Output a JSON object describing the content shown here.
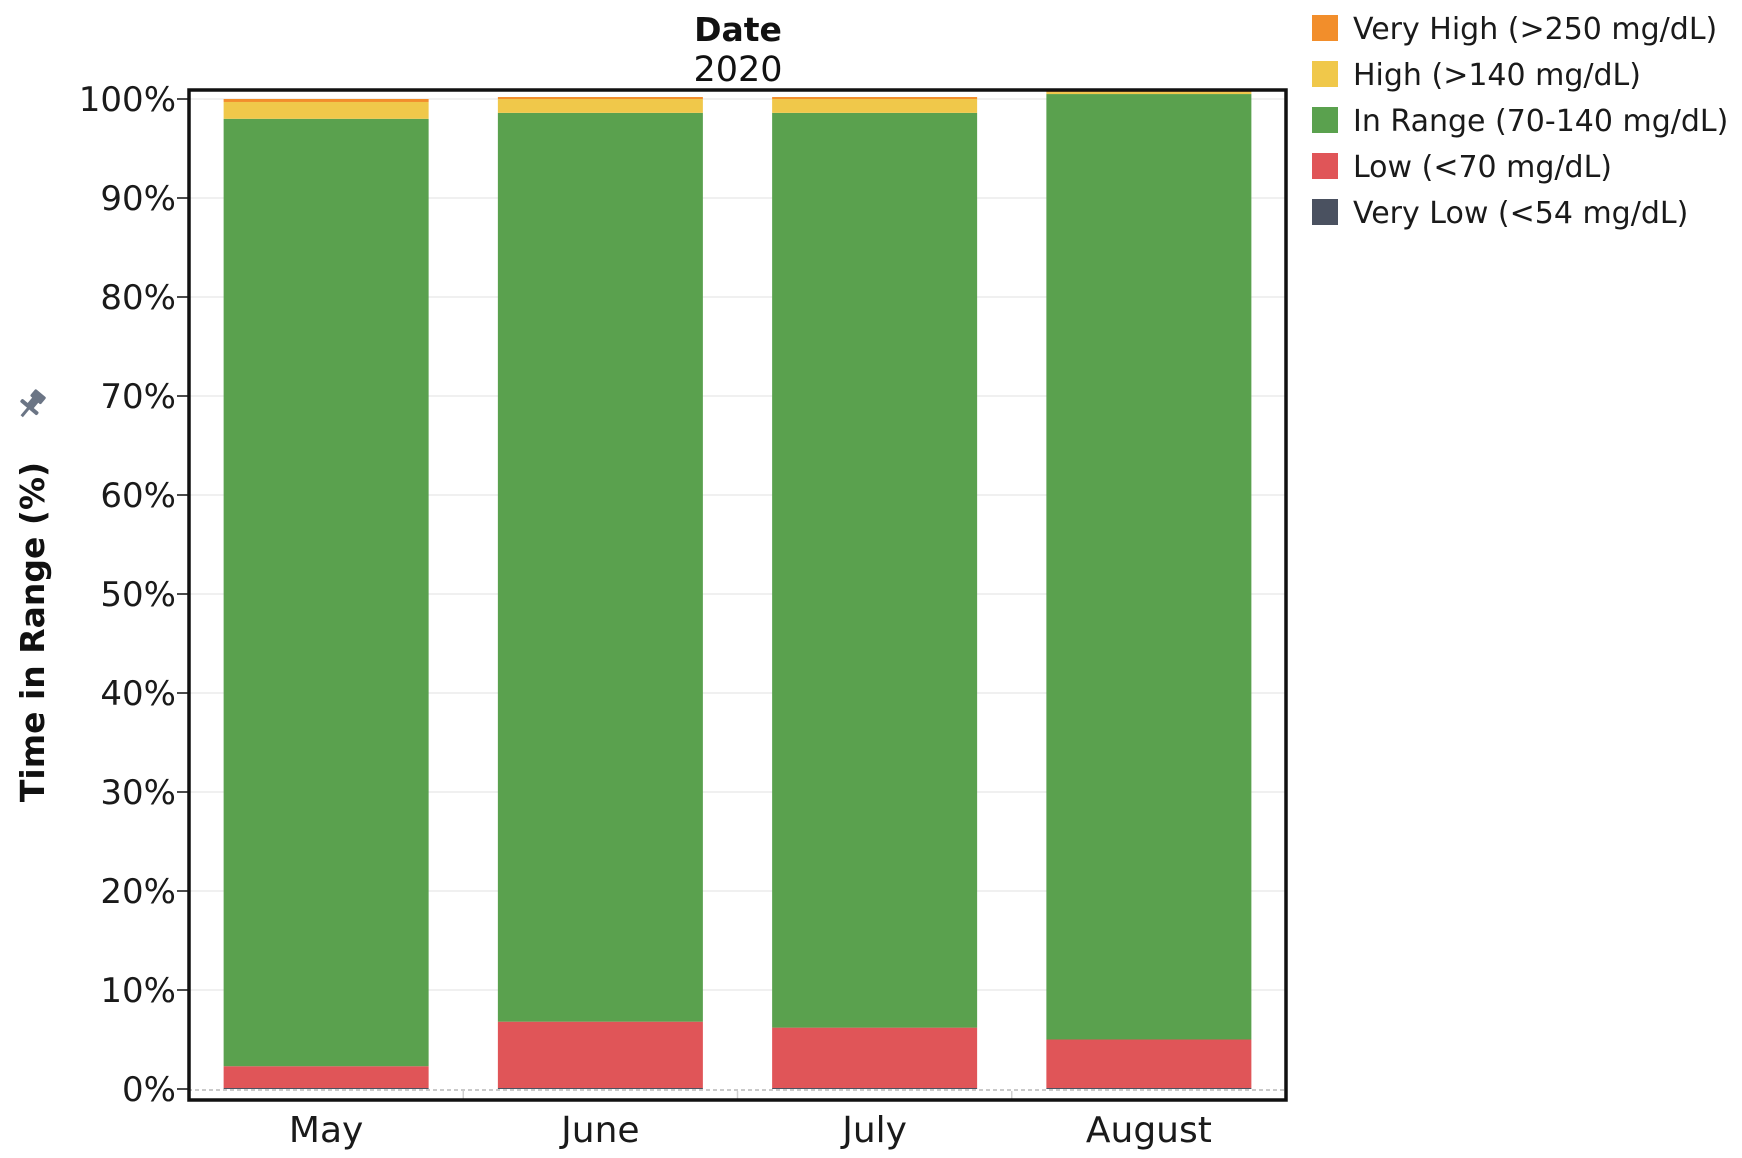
{
  "chart_data": {
    "type": "bar",
    "stacked": true,
    "title": "Date",
    "subtitle": "2020",
    "xlabel": "",
    "ylabel": "Time in Range (%)",
    "ylim": [
      0,
      100
    ],
    "yticks": [
      "0%",
      "10%",
      "20%",
      "30%",
      "40%",
      "50%",
      "60%",
      "70%",
      "80%",
      "90%",
      "100%"
    ],
    "ytick_values": [
      0,
      10,
      20,
      30,
      40,
      50,
      60,
      70,
      80,
      90,
      100
    ],
    "grid": true,
    "legend_position": "top-right",
    "categories": [
      "May",
      "June",
      "July",
      "August"
    ],
    "series": [
      {
        "name": "Very Low (<54 mg/dL)",
        "color": "#4a5160",
        "values": [
          0.1,
          0.1,
          0.1,
          0.1
        ]
      },
      {
        "name": "Low (<70 mg/dL)",
        "color": "#e05558",
        "values": [
          2.2,
          6.7,
          6.1,
          4.9
        ]
      },
      {
        "name": "In Range (70-140 mg/dL)",
        "color": "#5aa14e",
        "values": [
          95.7,
          91.8,
          92.4,
          95.5
        ]
      },
      {
        "name": "High (>140 mg/dL)",
        "color": "#f0c84a",
        "values": [
          1.7,
          1.4,
          1.4,
          0.2
        ]
      },
      {
        "name": "Very High (>250 mg/dL)",
        "color": "#f28e2b",
        "values": [
          0.3,
          0.2,
          0.2,
          0.3
        ]
      }
    ],
    "legend_order": [
      4,
      3,
      2,
      1,
      0
    ]
  }
}
